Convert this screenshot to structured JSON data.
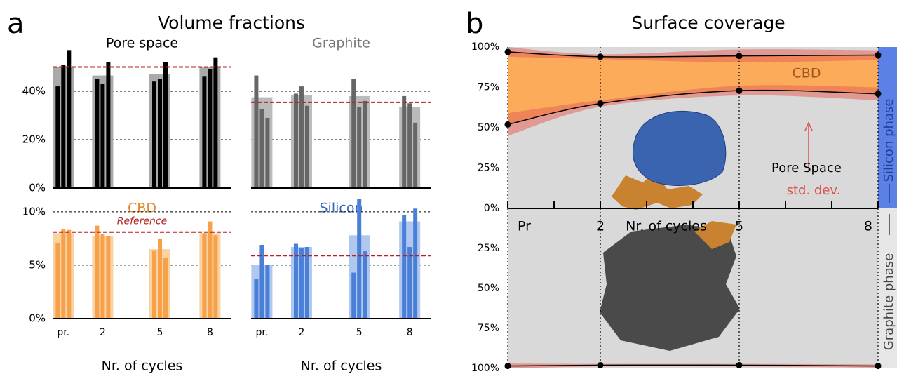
{
  "figure": {
    "panels": [
      {
        "label": "a",
        "title": "Volume fractions"
      },
      {
        "label": "b",
        "title": "Surface coverage"
      }
    ]
  },
  "chart_data": [
    {
      "type": "grouped-bar",
      "title": "Pore space",
      "title_color": "#000000",
      "categories": [
        null,
        null,
        null,
        null
      ],
      "mean": [
        50,
        46.5,
        47,
        50
      ],
      "samples": [
        [
          42,
          51,
          57
        ],
        [
          45,
          43,
          52
        ],
        [
          44,
          45,
          52
        ],
        [
          46,
          49,
          54
        ]
      ],
      "reference": 50,
      "reference_color": "#b22222",
      "color": "#000000",
      "light_color": "#aaaaaa",
      "ylim": [
        0,
        60
      ],
      "yticks": [
        {
          "value": 0,
          "label": "0%"
        },
        {
          "value": 20,
          "label": "20%"
        },
        {
          "value": 40,
          "label": "40%"
        }
      ],
      "grid_y": [
        20,
        40
      ]
    },
    {
      "type": "grouped-bar",
      "title": "Graphite",
      "title_color": "#777777",
      "categories": [
        null,
        null,
        null,
        null
      ],
      "mean": [
        37.5,
        38.5,
        38,
        33.5
      ],
      "samples": [
        [
          46.5,
          32.5,
          29
        ],
        [
          39,
          42,
          34
        ],
        [
          45,
          33.5,
          36
        ],
        [
          38,
          35,
          27
        ]
      ],
      "reference": 35.4,
      "reference_color": "#b22222",
      "color": "#666666",
      "light_color": "#bbbbbb",
      "ylim": [
        0,
        60
      ],
      "grid_y": [
        20,
        40
      ]
    },
    {
      "type": "grouped-bar",
      "title": "CBD",
      "title_color": "#e08a2e",
      "categories": [
        "pr.",
        "2",
        "5",
        "8"
      ],
      "mean": [
        8,
        7.7,
        6.5,
        8
      ],
      "samples": [
        [
          7.1,
          8.4,
          8.3
        ],
        [
          8.7,
          7.9,
          7.7
        ],
        [
          6.4,
          7.5,
          5.7
        ],
        [
          8.0,
          9.1,
          7.8
        ]
      ],
      "reference": 8.1,
      "reference_label": "Reference",
      "reference_color": "#b22222",
      "color": "#f7a24b",
      "light_color": "#fad3a5",
      "ylim": [
        0,
        11.5
      ],
      "yticks": [
        {
          "value": 0,
          "label": "0%"
        },
        {
          "value": 5,
          "label": "5%"
        },
        {
          "value": 10,
          "label": "10%"
        }
      ],
      "grid_y": [
        5,
        10
      ],
      "xlabel": "Nr. of cycles"
    },
    {
      "type": "grouped-bar",
      "title": "Silicon",
      "title_color": "#3468c0",
      "categories": [
        "pr.",
        "2",
        "5",
        "8"
      ],
      "mean": [
        5.0,
        6.7,
        7.8,
        9.1
      ],
      "samples": [
        [
          3.7,
          6.9,
          5.0
        ],
        [
          7.0,
          6.6,
          6.7
        ],
        [
          4.3,
          11.2,
          6.3
        ],
        [
          9.7,
          6.7,
          10.3
        ]
      ],
      "reference": 5.9,
      "reference_color": "#b22222",
      "color": "#4a7fd8",
      "light_color": "#b0c8f0",
      "ylim": [
        0,
        11.5
      ],
      "grid_y": [
        5,
        10
      ],
      "xlabel": "Nr. of cycles"
    },
    {
      "type": "coverage",
      "x": [
        0,
        2,
        5,
        8
      ],
      "xlim": [
        0,
        8
      ],
      "xticks": [
        {
          "value": 0,
          "label": "Pr"
        },
        2,
        5,
        8
      ],
      "minor_xticks": [
        1,
        3,
        4,
        6,
        7
      ],
      "xlabel": "Nr. of cycles",
      "ylim": [
        0,
        100
      ],
      "yticks": [
        {
          "value": 0,
          "label": "0%"
        },
        {
          "value": 25,
          "label": "25%"
        },
        {
          "value": 50,
          "label": "50%"
        },
        {
          "value": 75,
          "label": "75%"
        },
        {
          "value": 100,
          "label": "100%"
        }
      ],
      "y2lim": [
        0,
        100
      ],
      "y2ticks": [
        {
          "value": 25,
          "label": "25%"
        },
        {
          "value": 50,
          "label": "50%"
        },
        {
          "value": 75,
          "label": "75%"
        },
        {
          "value": 100,
          "label": "100%"
        }
      ],
      "lines": [
        {
          "values": [
            97,
            94,
            94.5,
            95
          ],
          "std": [
            3,
            1.5,
            4,
            3
          ]
        },
        {
          "values": [
            52,
            65,
            73,
            71
          ],
          "std": [
            7,
            2,
            3,
            4
          ]
        },
        {
          "axis": "y2",
          "values": [
            98.5,
            98,
            98,
            98.5
          ],
          "std": [
            1.5,
            0.8,
            0.8,
            1
          ]
        }
      ],
      "fill_color": "#fbab5a",
      "std_color": "#e8655a",
      "background": "#d9d9d9",
      "silicon_color": "#5b80e6",
      "phase_labels": {
        "silicon": "Silicon phase",
        "graphite": "Graphite phase"
      },
      "annotations": {
        "cbd": "CBD",
        "std": "std. dev.",
        "pore": "Pore Space"
      }
    }
  ]
}
